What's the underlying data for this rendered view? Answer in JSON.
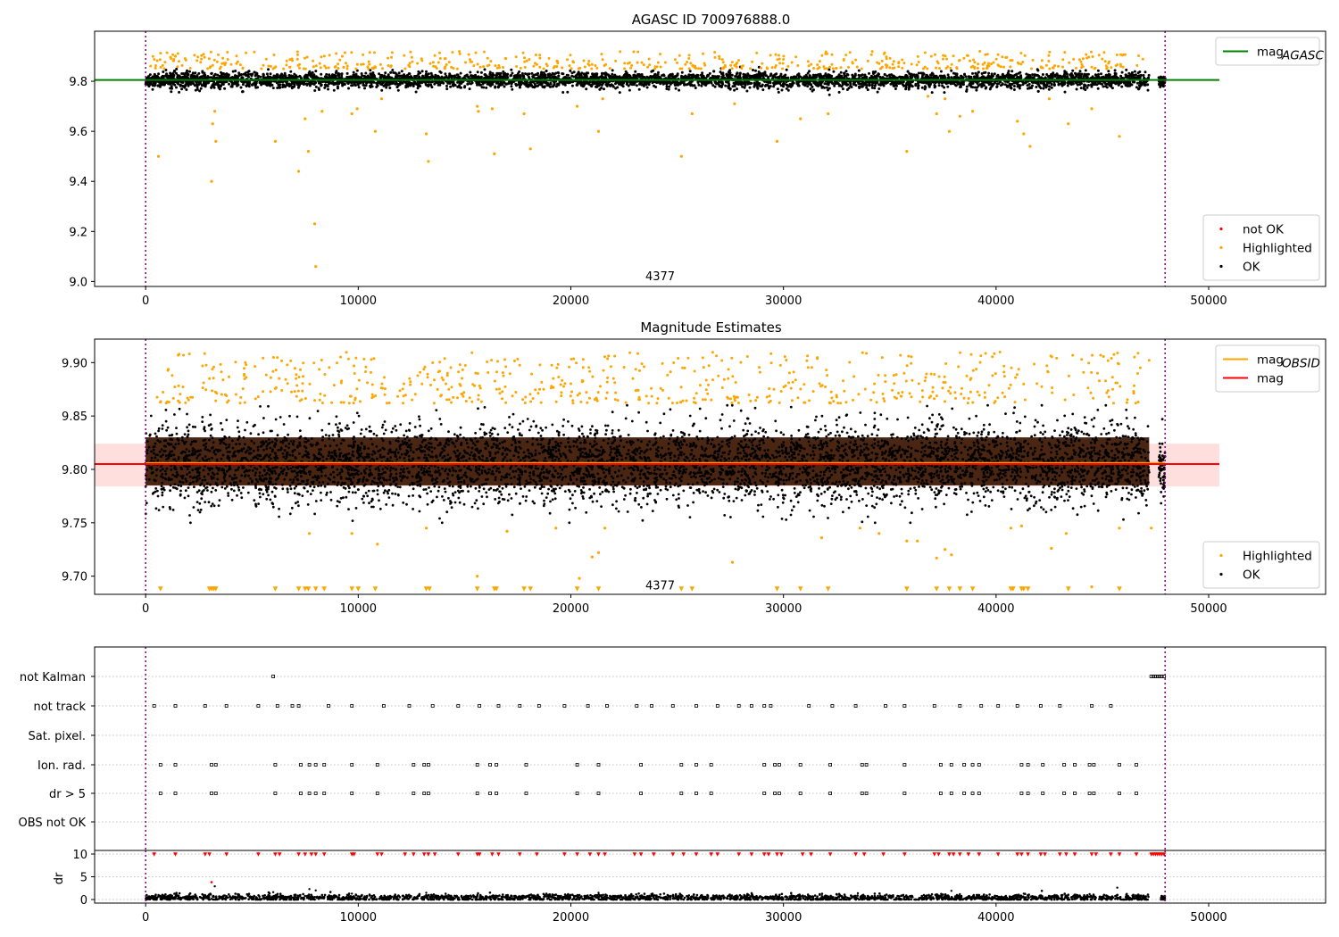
{
  "colors": {
    "ok": "#000000",
    "highlighted": "#FFA500",
    "not_ok": "#FF0000",
    "agasc_line": "#008000",
    "obsid_line": "#FFA500",
    "mag_line": "#FF0000",
    "band": "#FFB6B6"
  },
  "chart_data": [
    {
      "id": "agasc",
      "type": "scatter",
      "title": "AGASC ID 700976888.0",
      "xlim": [
        -2400,
        55500
      ],
      "ylim": [
        8.98,
        10.0
      ],
      "xticks": [
        0,
        10000,
        20000,
        30000,
        40000,
        50000
      ],
      "xtick_labels": [
        "0",
        "10000",
        "20000",
        "30000",
        "40000",
        "50000"
      ],
      "yticks": [
        9.0,
        9.2,
        9.4,
        9.6,
        9.8
      ],
      "ytick_labels": [
        "9.0",
        "9.2",
        "9.4",
        "9.6",
        "9.8"
      ],
      "vlines": [
        0,
        47950
      ],
      "annotation": {
        "x": 24200,
        "y": 9.005,
        "text": "4377"
      },
      "hline": {
        "y": 9.805,
        "x0": -2400,
        "x1": 50500,
        "color": "#008000"
      },
      "ok_band": {
        "x0": 0,
        "x1": 47200,
        "center": 9.805,
        "spread": 0.035,
        "tail": 9.755
      },
      "extra_cluster": {
        "x0": 47650,
        "x1": 47950,
        "center": 9.8,
        "spread": 0.02
      },
      "highlighted_top": {
        "x0": 200,
        "x1": 47200,
        "low": 9.85,
        "high": 9.92
      },
      "highlighted_points": [
        [
          1400,
          9.9
        ],
        [
          3100,
          9.4
        ],
        [
          3150,
          9.63
        ],
        [
          3250,
          9.68
        ],
        [
          3300,
          9.56
        ],
        [
          600,
          9.5
        ],
        [
          6100,
          9.56
        ],
        [
          7200,
          9.44
        ],
        [
          7500,
          9.65
        ],
        [
          7650,
          9.52
        ],
        [
          7950,
          9.23
        ],
        [
          8000,
          9.06
        ],
        [
          8300,
          9.68
        ],
        [
          9700,
          9.67
        ],
        [
          9950,
          9.69
        ],
        [
          10800,
          9.6
        ],
        [
          11100,
          9.73
        ],
        [
          13200,
          9.59
        ],
        [
          13300,
          9.48
        ],
        [
          15600,
          9.7
        ],
        [
          15650,
          9.68
        ],
        [
          16300,
          9.69
        ],
        [
          16400,
          9.51
        ],
        [
          17800,
          9.67
        ],
        [
          18100,
          9.53
        ],
        [
          20300,
          9.7
        ],
        [
          21300,
          9.6
        ],
        [
          21500,
          9.73
        ],
        [
          25200,
          9.5
        ],
        [
          25700,
          9.67
        ],
        [
          27700,
          9.71
        ],
        [
          29700,
          9.56
        ],
        [
          30800,
          9.65
        ],
        [
          32100,
          9.67
        ],
        [
          35800,
          9.52
        ],
        [
          36800,
          9.74
        ],
        [
          37200,
          9.67
        ],
        [
          37600,
          9.73
        ],
        [
          37800,
          9.6
        ],
        [
          38300,
          9.66
        ],
        [
          38900,
          9.68
        ],
        [
          41000,
          9.64
        ],
        [
          41300,
          9.59
        ],
        [
          41600,
          9.54
        ],
        [
          42500,
          9.73
        ],
        [
          43400,
          9.63
        ],
        [
          44500,
          9.69
        ],
        [
          45800,
          9.58
        ]
      ],
      "legends": [
        {
          "pos": "upper-right",
          "entries": [
            {
              "label": "mag",
              "sub": "AGASC",
              "kind": "line",
              "color": "#008000"
            }
          ]
        },
        {
          "pos": "lower-right",
          "entries": [
            {
              "label": "not OK",
              "kind": "dot",
              "color": "#FF0000"
            },
            {
              "label": "Highlighted",
              "kind": "dot",
              "color": "#FFA500"
            },
            {
              "label": "OK",
              "kind": "dot",
              "color": "#000000"
            }
          ]
        }
      ]
    },
    {
      "id": "estimates",
      "type": "scatter",
      "title": "Magnitude Estimates",
      "xlim": [
        -2400,
        55500
      ],
      "ylim": [
        9.683,
        9.922
      ],
      "xticks": [
        0,
        10000,
        20000,
        30000,
        40000,
        50000
      ],
      "xtick_labels": [
        "0",
        "10000",
        "20000",
        "30000",
        "40000",
        "50000"
      ],
      "yticks": [
        9.7,
        9.75,
        9.8,
        9.85,
        9.9
      ],
      "ytick_labels": [
        "9.70",
        "9.75",
        "9.80",
        "9.85",
        "9.90"
      ],
      "vlines": [
        0,
        47950
      ],
      "annotation": {
        "x": 24200,
        "y": 9.69,
        "text": "4377"
      },
      "band": {
        "x0": -2400,
        "x1": 50500,
        "y0": 9.784,
        "y1": 9.824,
        "color": "#FFB6B6"
      },
      "obsid_line": {
        "x0": 0,
        "x1": 47950,
        "y": 9.806,
        "color": "#FFA500"
      },
      "mag_line": {
        "x0": -2400,
        "x1": 50500,
        "y": 9.805,
        "color": "#FF0000"
      },
      "dense_core": {
        "x0": 0,
        "x1": 47200,
        "y0": 9.785,
        "y1": 9.83,
        "color": "#3a1500"
      },
      "ok_band": {
        "x0": 0,
        "x1": 47200,
        "center": 9.805,
        "spread": 0.03,
        "tail_low": 9.75,
        "tail_high": 9.86
      },
      "extra_cluster": {
        "x0": 47650,
        "x1": 47950,
        "center": 9.8,
        "spread": 0.015
      },
      "highlighted_top": {
        "x0": 200,
        "x1": 47200,
        "low": 9.862,
        "high": 9.91
      },
      "highlighted_low": [
        [
          7700,
          9.74
        ],
        [
          9700,
          9.74
        ],
        [
          10900,
          9.73
        ],
        [
          13200,
          9.745
        ],
        [
          15600,
          9.7
        ],
        [
          17000,
          9.742
        ],
        [
          19300,
          9.745
        ],
        [
          20400,
          9.698
        ],
        [
          21000,
          9.718
        ],
        [
          21300,
          9.722
        ],
        [
          21600,
          9.745
        ],
        [
          27600,
          9.713
        ],
        [
          31800,
          9.736
        ],
        [
          33600,
          9.745
        ],
        [
          34500,
          9.74
        ],
        [
          35800,
          9.733
        ],
        [
          36300,
          9.733
        ],
        [
          37200,
          9.717
        ],
        [
          37600,
          9.725
        ],
        [
          37900,
          9.72
        ],
        [
          40700,
          9.745
        ],
        [
          41200,
          9.747
        ],
        [
          42600,
          9.726
        ],
        [
          43300,
          9.74
        ],
        [
          44500,
          9.69
        ],
        [
          45800,
          9.745
        ],
        [
          47300,
          9.745
        ]
      ],
      "floor_markers_y": 9.688,
      "floor_markers_x": [
        700,
        3000,
        3100,
        3200,
        3300,
        6100,
        7200,
        7500,
        7650,
        8000,
        8400,
        9700,
        10000,
        10800,
        13200,
        13350,
        15600,
        16400,
        16500,
        17800,
        18100,
        20300,
        21300,
        25200,
        25700,
        29700,
        30800,
        32100,
        35800,
        37200,
        37800,
        38300,
        38900,
        40700,
        40800,
        41200,
        41300,
        41500,
        43400,
        45800
      ],
      "legends": [
        {
          "pos": "upper-right",
          "entries": [
            {
              "label": "mag",
              "sub": "OBSID",
              "kind": "line",
              "color": "#FFA500"
            },
            {
              "label": "mag",
              "kind": "line",
              "color": "#FF0000"
            }
          ]
        },
        {
          "pos": "lower-right",
          "entries": [
            {
              "label": "Highlighted",
              "kind": "dot",
              "color": "#FFA500"
            },
            {
              "label": "OK",
              "kind": "dot",
              "color": "#000000"
            }
          ]
        }
      ]
    },
    {
      "id": "flags",
      "type": "scatter",
      "xlim": [
        -2400,
        55500
      ],
      "categories": [
        "not Kalman",
        "not track",
        "Sat. pixel.",
        "Ion. rad.",
        "dr > 5",
        "OBS not OK"
      ],
      "vlines": [
        0,
        47950
      ],
      "rows": {
        "not Kalman": [
          6000,
          47300,
          47400,
          47500,
          47600,
          47700,
          47800,
          47900
        ],
        "not track": [
          400,
          1400,
          2800,
          3800,
          5300,
          6200,
          6900,
          7200,
          8600,
          9700,
          11200,
          12400,
          13500,
          14700,
          15700,
          16600,
          17600,
          18500,
          19700,
          20800,
          21700,
          23100,
          23800,
          24800,
          25900,
          26900,
          27900,
          28500,
          29100,
          29400,
          31200,
          32300,
          33400,
          34800,
          35700,
          37100,
          38300,
          39300,
          40100,
          41000,
          42100,
          43000,
          44500,
          45400
        ],
        "Sat. pixel.": [],
        "Ion. rad.": [
          700,
          1400,
          3100,
          3300,
          6100,
          7300,
          7700,
          8000,
          8400,
          9700,
          10900,
          12600,
          13100,
          13300,
          15600,
          16200,
          16500,
          17900,
          20300,
          21300,
          23300,
          25200,
          25900,
          26600,
          29100,
          29600,
          29800,
          30800,
          32200,
          33700,
          33900,
          35700,
          37400,
          37900,
          38500,
          38900,
          39200,
          41200,
          41500,
          42200,
          43200,
          43700,
          44400,
          44600,
          45800,
          46600
        ],
        "dr > 5": [
          700,
          1400,
          3100,
          3300,
          6100,
          7300,
          7700,
          8000,
          8400,
          9700,
          10900,
          12600,
          13100,
          13300,
          15600,
          16200,
          16500,
          17900,
          20300,
          21300,
          23300,
          25200,
          25900,
          26600,
          29100,
          29600,
          29800,
          30800,
          32200,
          33700,
          33900,
          35700,
          37400,
          37900,
          38500,
          38900,
          39200,
          41200,
          41500,
          42200,
          43200,
          43700,
          44400,
          44600,
          45800,
          46600
        ],
        "OBS not OK": []
      }
    },
    {
      "id": "dr",
      "type": "scatter",
      "ylabel": "dr",
      "xlim": [
        -2400,
        55500
      ],
      "ylim": [
        -0.8,
        10.5
      ],
      "xticks": [
        0,
        10000,
        20000,
        30000,
        40000,
        50000
      ],
      "xtick_labels": [
        "0",
        "10000",
        "20000",
        "30000",
        "40000",
        "50000"
      ],
      "yticks": [
        0,
        5,
        10
      ],
      "ytick_labels": [
        "0",
        "5",
        "10"
      ],
      "vlines": [
        0,
        47950
      ],
      "ok_band": {
        "x0": 0,
        "x1": 47200,
        "center": 0.4,
        "spread": 0.35
      },
      "red_top_y": 9.9,
      "red_top_x": [
        400,
        1400,
        2800,
        3000,
        3800,
        5300,
        6100,
        6300,
        7200,
        7500,
        7800,
        8000,
        8400,
        9700,
        9800,
        10900,
        11100,
        12200,
        12600,
        13100,
        13300,
        13600,
        14700,
        15600,
        15700,
        16300,
        16600,
        17600,
        18400,
        19700,
        20300,
        20900,
        21300,
        21600,
        23000,
        23300,
        23900,
        24800,
        25300,
        25900,
        26600,
        26900,
        27900,
        28500,
        29100,
        29300,
        29700,
        29900,
        30900,
        31300,
        32200,
        33400,
        33800,
        34700,
        35700,
        37100,
        37300,
        37800,
        38000,
        38300,
        38700,
        39200,
        40100,
        41000,
        41200,
        41500,
        42100,
        42300,
        43000,
        43300,
        43700,
        44500,
        44700,
        45400,
        45800,
        46600,
        47300,
        47400,
        47500,
        47600,
        47700,
        47800,
        47900
      ],
      "red_points": [
        [
          3100,
          3.8
        ]
      ],
      "black_points": [
        [
          3250,
          2.9
        ],
        [
          6000,
          1.6
        ],
        [
          7700,
          2.3
        ],
        [
          8000,
          2.0
        ],
        [
          9700,
          1.3
        ],
        [
          13200,
          1.5
        ],
        [
          21300,
          1.5
        ],
        [
          31700,
          1.2
        ],
        [
          33500,
          1.4
        ],
        [
          37900,
          1.9
        ],
        [
          38300,
          1.2
        ],
        [
          41300,
          1.3
        ],
        [
          45700,
          2.6
        ],
        [
          44400,
          1.2
        ]
      ],
      "extra_cluster": {
        "x0": 47750,
        "x1": 47950,
        "center": 0.4,
        "spread": 0.25
      }
    }
  ]
}
